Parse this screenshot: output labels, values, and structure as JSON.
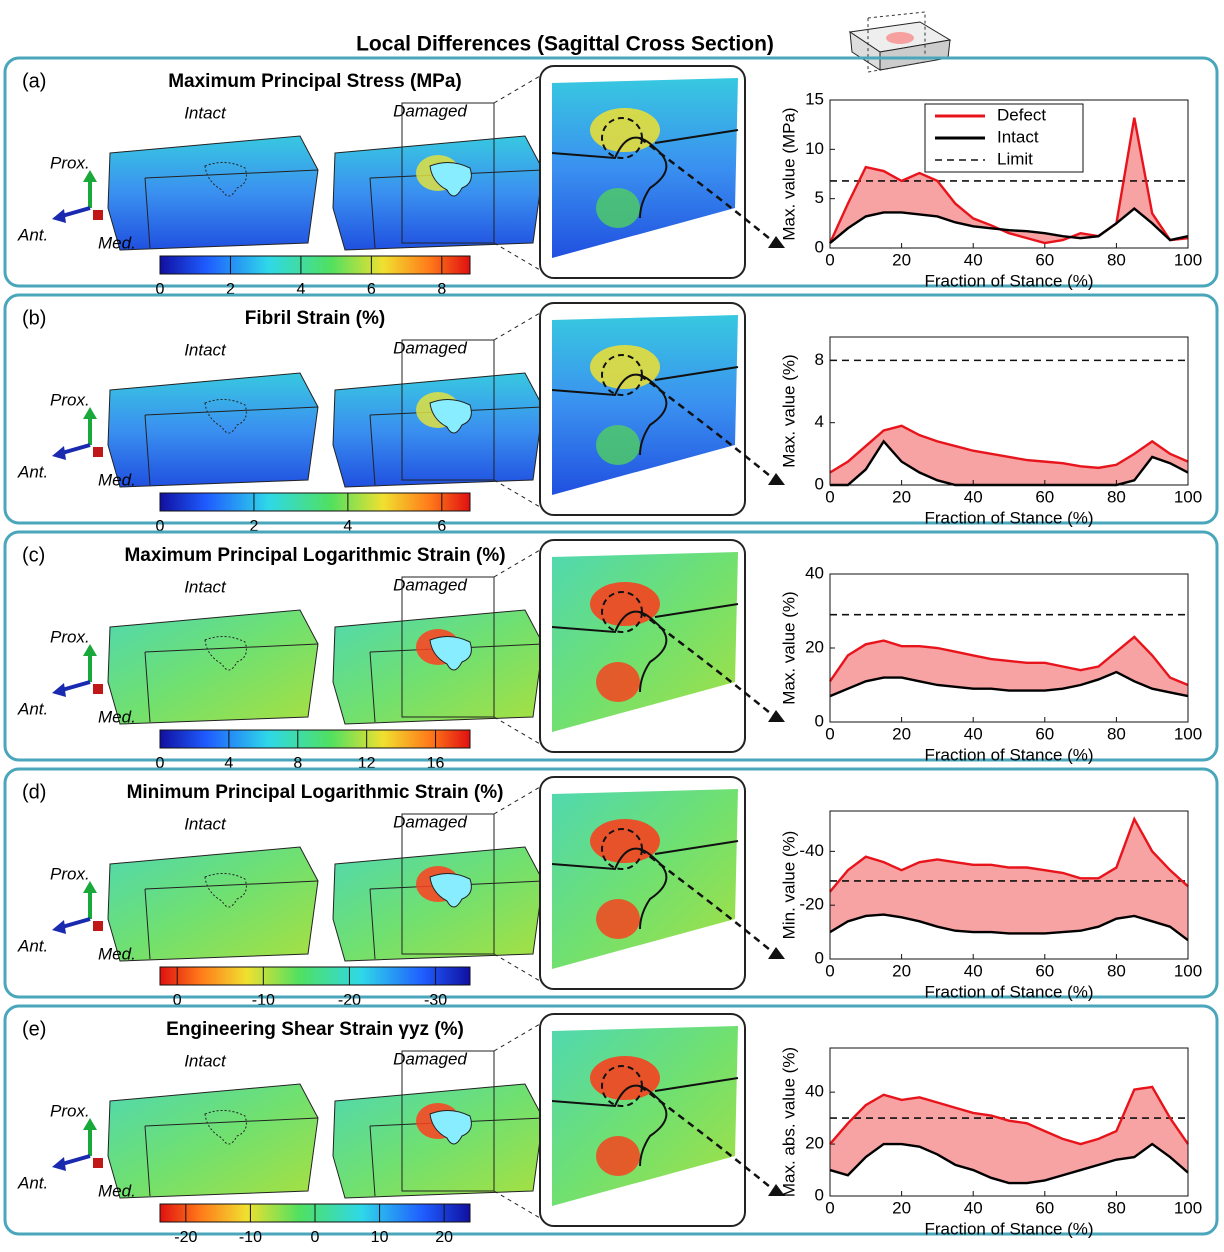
{
  "title": "Local Differences (Sagittal Cross Section)",
  "chart_data": [
    {
      "type": "line",
      "panel_label": "(a)",
      "title": "Maximum Principal Stress (MPa)",
      "intact_label": "Intact",
      "damaged_label": "Damaged",
      "axis_labels": {
        "prox": "Prox.",
        "ant": "Ant.",
        "med": "Med."
      },
      "colorbar": {
        "lim": [
          0,
          8.8
        ],
        "ticks": [
          0,
          2,
          4,
          6,
          8
        ],
        "reversed": false
      },
      "xlabel": "Fraction of Stance (%)",
      "ylabel": "Max. value (MPa)",
      "x": [
        0,
        5,
        10,
        15,
        20,
        25,
        30,
        35,
        40,
        45,
        50,
        55,
        60,
        65,
        70,
        75,
        80,
        85,
        90,
        95,
        100
      ],
      "xlim": [
        0,
        100
      ],
      "xticks": [
        0,
        20,
        40,
        60,
        80,
        100
      ],
      "ylim": [
        0,
        15
      ],
      "yticks": [
        0,
        5,
        10,
        15
      ],
      "series": [
        {
          "name": "Defect",
          "color": "#e8141c",
          "values": [
            0.5,
            4.5,
            8.2,
            7.8,
            6.8,
            7.6,
            6.8,
            4.5,
            3.0,
            2.3,
            1.5,
            1.0,
            0.5,
            0.8,
            1.5,
            1.2,
            2.5,
            13.2,
            3.5,
            0.8,
            1.0
          ]
        },
        {
          "name": "Intact",
          "color": "#000000",
          "values": [
            0.5,
            2.0,
            3.2,
            3.6,
            3.6,
            3.4,
            3.2,
            2.6,
            2.2,
            2.0,
            1.8,
            1.7,
            1.5,
            1.2,
            1.0,
            1.2,
            2.5,
            4.0,
            2.5,
            0.8,
            1.2
          ]
        }
      ],
      "limit": {
        "name": "Limit",
        "value": 6.8
      },
      "fill_color": "#f7a3a3",
      "legend": "upper right"
    },
    {
      "type": "line",
      "panel_label": "(b)",
      "title": "Fibril Strain (%)",
      "intact_label": "Intact",
      "damaged_label": "Damaged",
      "axis_labels": {
        "prox": "Prox.",
        "ant": "Ant.",
        "med": "Med."
      },
      "colorbar": {
        "lim": [
          0,
          6.6
        ],
        "ticks": [
          0,
          2,
          4,
          6
        ],
        "reversed": false
      },
      "xlabel": "Fraction of Stance (%)",
      "ylabel": "Max. value (%)",
      "x": [
        0,
        5,
        10,
        15,
        20,
        25,
        30,
        35,
        40,
        45,
        50,
        55,
        60,
        65,
        70,
        75,
        80,
        85,
        90,
        95,
        100
      ],
      "xlim": [
        0,
        100
      ],
      "xticks": [
        0,
        20,
        40,
        60,
        80,
        100
      ],
      "ylim": [
        0,
        9.5
      ],
      "yticks": [
        0,
        4,
        8
      ],
      "series": [
        {
          "color": "#e8141c",
          "values": [
            0.8,
            1.5,
            2.5,
            3.5,
            3.8,
            3.2,
            2.8,
            2.5,
            2.2,
            2.0,
            1.8,
            1.6,
            1.5,
            1.4,
            1.2,
            1.1,
            1.3,
            2.0,
            2.8,
            2.0,
            1.5
          ]
        },
        {
          "color": "#000000",
          "values": [
            0,
            0,
            1.0,
            2.8,
            1.5,
            0.8,
            0.3,
            0,
            0,
            0,
            0,
            0,
            0,
            0,
            0,
            0,
            0,
            0.3,
            1.8,
            1.4,
            0.8
          ]
        }
      ],
      "limit": {
        "value": 8
      },
      "fill_color": "#f7a3a3"
    },
    {
      "type": "line",
      "panel_label": "(c)",
      "title": "Maximum Principal Logarithmic Strain (%)",
      "intact_label": "Intact",
      "damaged_label": "Damaged",
      "axis_labels": {
        "prox": "Prox.",
        "ant": "Ant.",
        "med": "Med."
      },
      "colorbar": {
        "lim": [
          0,
          18
        ],
        "ticks": [
          0,
          4,
          8,
          12,
          16
        ],
        "reversed": false
      },
      "xlabel": "Fraction of Stance (%)",
      "ylabel": "Max. value (%)",
      "x": [
        0,
        5,
        10,
        15,
        20,
        25,
        30,
        35,
        40,
        45,
        50,
        55,
        60,
        65,
        70,
        75,
        80,
        85,
        90,
        95,
        100
      ],
      "xlim": [
        0,
        100
      ],
      "xticks": [
        0,
        20,
        40,
        60,
        80,
        100
      ],
      "ylim": [
        0,
        40
      ],
      "yticks": [
        0,
        20,
        40
      ],
      "series": [
        {
          "color": "#e8141c",
          "values": [
            11,
            18,
            21,
            22,
            20.5,
            20.5,
            20,
            19,
            18,
            17,
            16.5,
            16,
            16,
            15,
            14,
            15,
            19,
            23,
            18,
            12,
            10
          ]
        },
        {
          "color": "#000000",
          "values": [
            7,
            9,
            11,
            12,
            12,
            11,
            10,
            9.5,
            9,
            9,
            8.5,
            8.5,
            8.5,
            9,
            10,
            11.5,
            13.5,
            11,
            9,
            8,
            7
          ]
        }
      ],
      "limit": {
        "value": 29
      },
      "fill_color": "#f7a3a3"
    },
    {
      "type": "line",
      "panel_label": "(d)",
      "title": "Minimum Principal Logarithmic Strain (%)",
      "intact_label": "Intact",
      "damaged_label": "Damaged",
      "axis_labels": {
        "prox": "Prox.",
        "ant": "Ant.",
        "med": "Med."
      },
      "colorbar": {
        "lim": [
          2,
          -34
        ],
        "ticks": [
          0,
          -10,
          -20,
          -30
        ],
        "reversed": true
      },
      "xlabel": "Fraction of Stance (%)",
      "ylabel": "Min. value (%)",
      "x": [
        0,
        5,
        10,
        15,
        20,
        25,
        30,
        35,
        40,
        45,
        50,
        55,
        60,
        65,
        70,
        75,
        80,
        85,
        90,
        95,
        100
      ],
      "xlim": [
        0,
        100
      ],
      "xticks": [
        0,
        20,
        40,
        60,
        80,
        100
      ],
      "ylim": [
        0,
        -55
      ],
      "yticks": [
        0,
        -20,
        -40
      ],
      "series": [
        {
          "color": "#e8141c",
          "values": [
            -25,
            -33,
            -38,
            -36,
            -33,
            -36,
            -37,
            -36,
            -35,
            -35,
            -34,
            -34,
            -33,
            -32,
            -30,
            -30,
            -34,
            -52,
            -40,
            -33,
            -27
          ]
        },
        {
          "color": "#000000",
          "values": [
            -10,
            -14,
            -16,
            -16.5,
            -15.5,
            -14,
            -12,
            -10.5,
            -10,
            -10,
            -9.5,
            -9.5,
            -9.5,
            -10,
            -10.5,
            -12,
            -15,
            -16,
            -14,
            -12,
            -7
          ]
        }
      ],
      "limit": {
        "value": -29
      },
      "fill_color": "#f7a3a3"
    },
    {
      "type": "line",
      "panel_label": "(e)",
      "title": "Engineering Shear Strain γyz (%)",
      "intact_label": "Intact",
      "damaged_label": "Damaged",
      "axis_labels": {
        "prox": "Prox.",
        "ant": "Ant.",
        "med": "Med."
      },
      "colorbar": {
        "lim": [
          -24,
          24
        ],
        "ticks": [
          -20,
          -10,
          0,
          10,
          20
        ],
        "reversed": true
      },
      "xlabel": "Fraction of Stance (%)",
      "ylabel": "Max. abs. value (%)",
      "x": [
        0,
        5,
        10,
        15,
        20,
        25,
        30,
        35,
        40,
        45,
        50,
        55,
        60,
        65,
        70,
        75,
        80,
        85,
        90,
        95,
        100
      ],
      "xlim": [
        0,
        100
      ],
      "xticks": [
        0,
        20,
        40,
        60,
        80,
        100
      ],
      "ylim": [
        0,
        57
      ],
      "yticks": [
        0,
        20,
        40
      ],
      "series": [
        {
          "color": "#e8141c",
          "values": [
            20,
            28,
            35,
            39,
            37,
            38,
            36,
            34,
            32,
            31,
            29,
            28,
            25,
            22,
            20,
            22,
            25,
            41,
            42,
            30,
            20
          ]
        },
        {
          "color": "#000000",
          "values": [
            10,
            8,
            15,
            20,
            20,
            19,
            16,
            12,
            10,
            7,
            5,
            5,
            6,
            8,
            10,
            12,
            14,
            15,
            20,
            15,
            9
          ]
        }
      ],
      "limit": {
        "value": 30
      },
      "fill_color": "#f7a3a3"
    }
  ]
}
